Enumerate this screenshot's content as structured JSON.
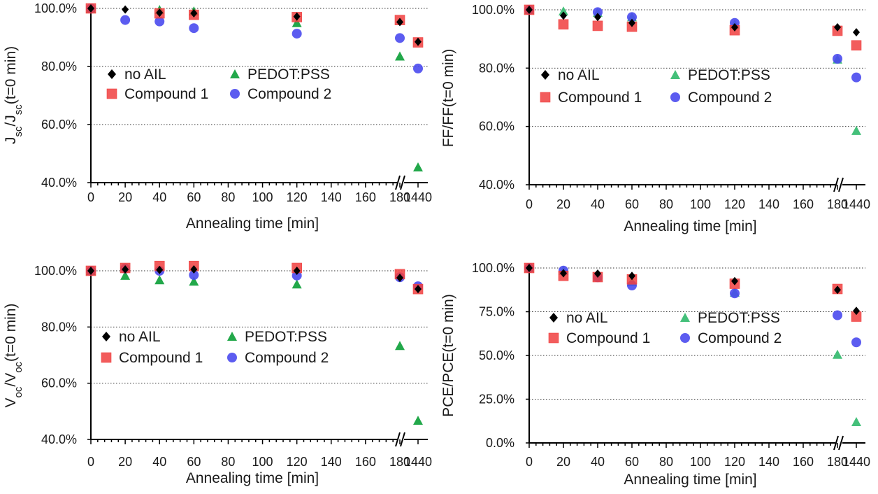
{
  "figure": {
    "shared_xlabel": "Annealing time [min]"
  },
  "chart_data": [
    {
      "type": "scatter",
      "ylabel_html": {
        "a": "J",
        "a_sub": "sc",
        "b": "/J",
        "b_sub": "sc",
        "c": "(t=0 min)"
      },
      "xlabel": "Annealing time [min]",
      "x_ticks": [
        "0",
        "20",
        "40",
        "60",
        "80",
        "100",
        "120",
        "140",
        "160",
        "180",
        "1440"
      ],
      "y_ticks": [
        "40.0%",
        "60.0%",
        "80.0%",
        "100.0%"
      ],
      "ylim": [
        40,
        100
      ],
      "grid": "horizontal dotted",
      "axis_break": "between 180 and 1440",
      "legend": [
        "no AIL",
        "PEDOT:PSS",
        "Compound 1",
        "Compound 2"
      ],
      "x": [
        "0",
        "20",
        "40",
        "60",
        "120",
        "180",
        "1440"
      ],
      "series": [
        {
          "name": "no AIL",
          "marker": "diamond",
          "color": "#000000",
          "values": [
            100,
            99.6,
            98.5,
            98.3,
            97.2,
            95.3,
            88.5
          ]
        },
        {
          "name": "PEDOT:PSS",
          "marker": "triangle",
          "color": "#22a84a",
          "values": [
            100,
            null,
            99.5,
            99,
            95,
            83.5,
            45.3
          ]
        },
        {
          "name": "Compound 1",
          "marker": "square",
          "color": "#f04040",
          "values": [
            100,
            null,
            98.3,
            97.8,
            97,
            96,
            88.3
          ]
        },
        {
          "name": "Compound 2",
          "marker": "circle",
          "color": "#4a4aee",
          "values": [
            100,
            96,
            95.5,
            93.2,
            91.3,
            89.8,
            79.3
          ]
        }
      ]
    },
    {
      "type": "scatter",
      "ylabel_text": "FF/FF(t=0 min)",
      "xlabel": "Annealing time [min]",
      "x_ticks": [
        "0",
        "20",
        "40",
        "60",
        "80",
        "100",
        "120",
        "140",
        "160",
        "180",
        "1440"
      ],
      "y_ticks": [
        "40.0%",
        "60.0%",
        "80.0%",
        "100.0%"
      ],
      "ylim": [
        40,
        100
      ],
      "grid": "horizontal dotted",
      "axis_break": "between 180 and 1440",
      "legend": [
        "no AIL",
        "PEDOT:PSS",
        "Compound 1",
        "Compound 2"
      ],
      "x": [
        "0",
        "20",
        "40",
        "60",
        "120",
        "180",
        "1440"
      ],
      "series": [
        {
          "name": "no AIL",
          "marker": "diamond",
          "color": "#000000",
          "values": [
            100,
            98,
            97.5,
            95.5,
            94,
            94,
            92.3
          ]
        },
        {
          "name": "PEDOT:PSS",
          "marker": "triangle",
          "color": "#44c07a",
          "values": [
            100,
            99.5,
            99,
            97.5,
            95,
            83,
            58.5
          ]
        },
        {
          "name": "Compound 1",
          "marker": "square",
          "color": "#f04040",
          "values": [
            100,
            95,
            94.5,
            94.2,
            93,
            92.8,
            87.8
          ]
        },
        {
          "name": "Compound 2",
          "marker": "circle",
          "color": "#4a4aee",
          "values": [
            100,
            null,
            99.2,
            97.5,
            95.5,
            83.2,
            76.8
          ]
        }
      ]
    },
    {
      "type": "scatter",
      "ylabel_html": {
        "a": "V",
        "a_sub": "oc",
        "b": "/V",
        "b_sub": "oc",
        "c": "(t=0 min)"
      },
      "xlabel": "Annealing time [min]",
      "x_ticks": [
        "0",
        "20",
        "40",
        "60",
        "80",
        "100",
        "120",
        "140",
        "160",
        "180",
        "1440"
      ],
      "y_ticks": [
        "40.0%",
        "60.0%",
        "80.0%",
        "100.0%"
      ],
      "ylim": [
        40,
        100
      ],
      "grid": "horizontal dotted",
      "axis_break": "between 180 and 1440",
      "legend": [
        "no AIL",
        "PEDOT:PSS",
        "Compound 1",
        "Compound 2"
      ],
      "x": [
        "0",
        "20",
        "40",
        "60",
        "120",
        "180",
        "1440"
      ],
      "series": [
        {
          "name": "no AIL",
          "marker": "diamond",
          "color": "#000000",
          "values": [
            100,
            100.5,
            100.3,
            100.5,
            100,
            97.5,
            93.5
          ]
        },
        {
          "name": "PEDOT:PSS",
          "marker": "triangle",
          "color": "#22a84a",
          "values": [
            100,
            98.3,
            96.7,
            96.2,
            95.2,
            73.3,
            46.7
          ]
        },
        {
          "name": "Compound 1",
          "marker": "square",
          "color": "#f04040",
          "values": [
            100,
            101,
            101.7,
            101.7,
            101,
            98.8,
            93.5
          ]
        },
        {
          "name": "Compound 2",
          "marker": "circle",
          "color": "#4a4aee",
          "values": [
            100,
            100.8,
            100,
            98.5,
            98.3,
            97.7,
            94.5
          ]
        }
      ]
    },
    {
      "type": "scatter",
      "ylabel_text": "PCE/PCE(t=0 min)",
      "xlabel": "Annealing time [min]",
      "x_ticks": [
        "0",
        "20",
        "40",
        "60",
        "80",
        "100",
        "120",
        "140",
        "160",
        "180",
        "1440"
      ],
      "y_ticks": [
        "0.0%",
        "25.0%",
        "50.0%",
        "75.0%",
        "100.0%"
      ],
      "ylim": [
        0,
        100
      ],
      "grid": "horizontal dotted",
      "axis_break": "between 180 and 1440",
      "legend": [
        "no AIL",
        "PEDOT:PSS",
        "Compound 1",
        "Compound 2"
      ],
      "x": [
        "0",
        "20",
        "40",
        "60",
        "120",
        "180",
        "1440"
      ],
      "series": [
        {
          "name": "no AIL",
          "marker": "diamond",
          "color": "#000000",
          "values": [
            100,
            97,
            96.8,
            95.5,
            92.5,
            87.5,
            75.5
          ]
        },
        {
          "name": "PEDOT:PSS",
          "marker": "triangle",
          "color": "#44c07a",
          "values": [
            100,
            98.5,
            95,
            92,
            86,
            50.5,
            12
          ]
        },
        {
          "name": "Compound 1",
          "marker": "square",
          "color": "#f04040",
          "values": [
            100,
            95.5,
            94.8,
            93.5,
            91,
            88,
            72.2
          ]
        },
        {
          "name": "Compound 2",
          "marker": "circle",
          "color": "#4a4aee",
          "values": [
            100,
            98.5,
            94.7,
            90,
            85.5,
            73,
            57.5
          ]
        }
      ]
    }
  ]
}
